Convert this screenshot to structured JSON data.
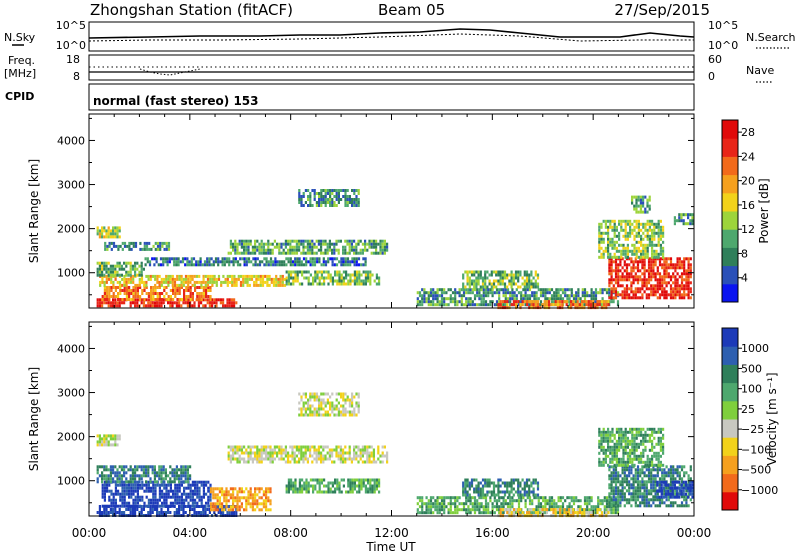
{
  "header": {
    "station": "Zhongshan Station (fitACF)",
    "beam": "Beam 05",
    "date": "27/Sep/2015"
  },
  "nsky_panel": {
    "left_label": "N.Sky",
    "left_ticks": [
      "10^5",
      "10^0"
    ],
    "right_ticks": [
      "10^5",
      "10^0"
    ],
    "right_label": "N.Search"
  },
  "freq_panel": {
    "left_label_top": "Freq.",
    "left_label_bottom": "[MHz]",
    "left_ticks": [
      "18",
      "8"
    ],
    "right_ticks": [
      "60",
      "0"
    ],
    "right_label": "Nave"
  },
  "cpid_panel": {
    "label": "CPID",
    "text": "normal (fast stereo) 153"
  },
  "colors": {
    "power_scale": [
      "#0a14f0",
      "#2a50b8",
      "#2f7f5a",
      "#4ea86e",
      "#9dd43b",
      "#f2d21a",
      "#f5a01e",
      "#f26a1b",
      "#e82518",
      "#e00a0a"
    ],
    "velocity_scale": [
      "#1c3ab8",
      "#2d5fb0",
      "#2f7f5a",
      "#4ea86e",
      "#7fcf3c",
      "#c8c8c0",
      "#f2d21a",
      "#f5a01e",
      "#f26a1b",
      "#e00a0a"
    ]
  },
  "chart_data": [
    {
      "type": "heatmap",
      "name": "power",
      "ylabel": "Slant Range [km]",
      "y_ticks": [
        "1000",
        "2000",
        "3000",
        "4000"
      ],
      "ylim": [
        200,
        4600
      ],
      "x_ticks": [
        "00:00",
        "04:00",
        "08:00",
        "12:00",
        "16:00",
        "20:00",
        "00:00"
      ],
      "colorbar": {
        "label": "Power [dB]",
        "ticks": [
          "4",
          "8",
          "12",
          "16",
          "20",
          "24",
          "28"
        ],
        "range": [
          0,
          30
        ]
      },
      "regions": [
        {
          "t0": 0.3,
          "t1": 5.8,
          "r0": 220,
          "r1": 420,
          "v": 27
        },
        {
          "t0": 0.5,
          "t1": 4.8,
          "r0": 420,
          "r1": 700,
          "v": 22
        },
        {
          "t0": 0.4,
          "t1": 7.8,
          "r0": 700,
          "r1": 950,
          "v": 17
        },
        {
          "t0": 7.8,
          "t1": 11.5,
          "r0": 750,
          "r1": 1050,
          "v": 12
        },
        {
          "t0": 0.3,
          "t1": 2.2,
          "r0": 950,
          "r1": 1250,
          "v": 11
        },
        {
          "t0": 2.2,
          "t1": 11.0,
          "r0": 1150,
          "r1": 1350,
          "v": 7
        },
        {
          "t0": 5.5,
          "t1": 11.8,
          "r0": 1450,
          "r1": 1750,
          "v": 10
        },
        {
          "t0": 0.6,
          "t1": 3.2,
          "r0": 1550,
          "r1": 1700,
          "v": 8
        },
        {
          "t0": 0.3,
          "t1": 1.2,
          "r0": 1800,
          "r1": 2050,
          "v": 14
        },
        {
          "t0": 8.3,
          "t1": 10.7,
          "r0": 2500,
          "r1": 2900,
          "v": 8
        },
        {
          "t0": 13.0,
          "t1": 21.0,
          "r0": 300,
          "r1": 650,
          "v": 9
        },
        {
          "t0": 14.8,
          "t1": 17.8,
          "r0": 650,
          "r1": 1050,
          "v": 12
        },
        {
          "t0": 16.2,
          "t1": 20.6,
          "r0": 220,
          "r1": 380,
          "v": 22
        },
        {
          "t0": 20.6,
          "t1": 23.9,
          "r0": 450,
          "r1": 1350,
          "v": 26
        },
        {
          "t0": 20.2,
          "t1": 22.8,
          "r0": 1350,
          "r1": 2200,
          "v": 13
        },
        {
          "t0": 21.5,
          "t1": 22.2,
          "r0": 2400,
          "r1": 2750,
          "v": 9
        },
        {
          "t0": 23.2,
          "t1": 23.9,
          "r0": 2100,
          "r1": 2350,
          "v": 8
        }
      ]
    },
    {
      "type": "heatmap",
      "name": "velocity",
      "ylabel": "Slant Range [km]",
      "y_ticks": [
        "1000",
        "2000",
        "3000",
        "4000"
      ],
      "ylim": [
        200,
        4600
      ],
      "x_ticks": [
        "00:00",
        "04:00",
        "08:00",
        "12:00",
        "16:00",
        "20:00",
        "00:00"
      ],
      "xlabel": "Time UT",
      "colorbar": {
        "label": "Velocity [m s⁻¹]",
        "ticks": [
          "1000",
          "500",
          "100",
          "25",
          "−25",
          "−100",
          "−500",
          "−1000"
        ]
      },
      "regions": [
        {
          "t0": 0.3,
          "t1": 5.8,
          "r0": 220,
          "r1": 450,
          "v": 0
        },
        {
          "t0": 0.5,
          "t1": 4.8,
          "r0": 450,
          "r1": 1000,
          "v": 0
        },
        {
          "t0": 4.8,
          "t1": 7.2,
          "r0": 350,
          "r1": 850,
          "v": 7
        },
        {
          "t0": 0.3,
          "t1": 4.0,
          "r0": 1000,
          "r1": 1350,
          "v": 2
        },
        {
          "t0": 7.8,
          "t1": 11.5,
          "r0": 750,
          "r1": 1050,
          "v": 3
        },
        {
          "t0": 5.5,
          "t1": 11.8,
          "r0": 1400,
          "r1": 1800,
          "v": 5
        },
        {
          "t0": 0.3,
          "t1": 1.2,
          "r0": 1800,
          "r1": 2050,
          "v": 5
        },
        {
          "t0": 8.3,
          "t1": 10.7,
          "r0": 2500,
          "r1": 3000,
          "v": 5
        },
        {
          "t0": 13.0,
          "t1": 21.0,
          "r0": 300,
          "r1": 650,
          "v": 3
        },
        {
          "t0": 14.8,
          "t1": 17.8,
          "r0": 650,
          "r1": 1050,
          "v": 2
        },
        {
          "t0": 16.2,
          "t1": 20.6,
          "r0": 220,
          "r1": 380,
          "v": 6
        },
        {
          "t0": 20.6,
          "t1": 23.9,
          "r0": 450,
          "r1": 1350,
          "v": 2
        },
        {
          "t0": 22.5,
          "t1": 23.9,
          "r0": 600,
          "r1": 1000,
          "v": 0
        },
        {
          "t0": 20.2,
          "t1": 22.8,
          "r0": 1350,
          "r1": 2200,
          "v": 3
        }
      ]
    }
  ]
}
